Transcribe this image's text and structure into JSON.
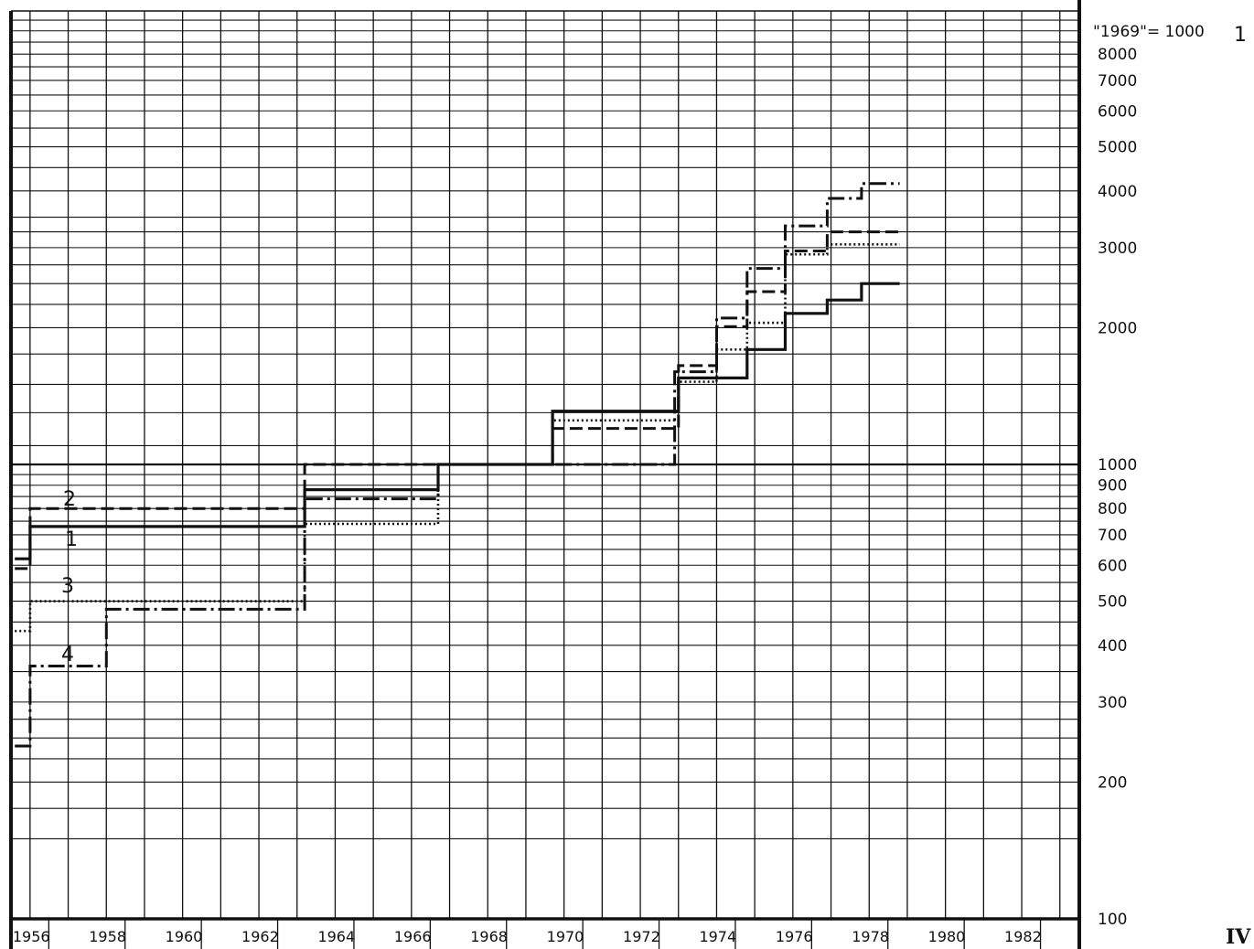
{
  "chart_data": {
    "type": "line",
    "title": "",
    "xlabel": "",
    "ylabel": "",
    "scale_note": "\"1969\"= 1000",
    "figure_number": "1",
    "panel_label": "IV",
    "y_scale": "log",
    "ylim": [
      100,
      10000
    ],
    "xlim": [
      1955.5,
      1983.5
    ],
    "x_tick_labels": [
      "1956",
      "1958",
      "1960",
      "1962",
      "1964",
      "1966",
      "1968",
      "1970",
      "1972",
      "1974",
      "1976",
      "1978",
      "1980",
      "1982"
    ],
    "y_tick_labels": [
      {
        "value": 8000,
        "label": "8000"
      },
      {
        "value": 7000,
        "label": "7000"
      },
      {
        "value": 6000,
        "label": "6000"
      },
      {
        "value": 5000,
        "label": "5000"
      },
      {
        "value": 4000,
        "label": "4000"
      },
      {
        "value": 3000,
        "label": "3000"
      },
      {
        "value": 2000,
        "label": "2000"
      },
      {
        "value": 1000,
        "label": "1000"
      },
      {
        "value": 900,
        "label": "900"
      },
      {
        "value": 800,
        "label": "800"
      },
      {
        "value": 700,
        "label": "700"
      },
      {
        "value": 600,
        "label": "600"
      },
      {
        "value": 500,
        "label": "500"
      },
      {
        "value": 400,
        "label": "400"
      },
      {
        "value": 300,
        "label": "300"
      },
      {
        "value": 200,
        "label": "200"
      },
      {
        "value": 100,
        "label": "100"
      }
    ],
    "grid": true,
    "series": [
      {
        "label": "1",
        "style": "solid",
        "steps": [
          [
            1955.6,
            620
          ],
          [
            1956.0,
            730
          ],
          [
            1963.2,
            880
          ],
          [
            1966.7,
            1000
          ],
          [
            1969.7,
            1310
          ],
          [
            1973.0,
            1550
          ],
          [
            1974.8,
            1790
          ],
          [
            1975.8,
            2150
          ],
          [
            1976.9,
            2300
          ],
          [
            1977.8,
            2500
          ],
          [
            1978.8,
            null
          ]
        ]
      },
      {
        "label": "2",
        "style": "dashed",
        "steps": [
          [
            1955.6,
            590
          ],
          [
            1956.0,
            800
          ],
          [
            1963.2,
            1000
          ],
          [
            1966.7,
            1000
          ],
          [
            1969.7,
            1200
          ],
          [
            1973.0,
            1650
          ],
          [
            1974.0,
            2010
          ],
          [
            1974.8,
            2400
          ],
          [
            1975.8,
            2950
          ],
          [
            1976.9,
            3250
          ],
          [
            1978.8,
            null
          ]
        ]
      },
      {
        "label": "3",
        "style": "dotted",
        "steps": [
          [
            1955.6,
            430
          ],
          [
            1956.0,
            500
          ],
          [
            1963.2,
            740
          ],
          [
            1966.7,
            1000
          ],
          [
            1969.7,
            1250
          ],
          [
            1973.0,
            1520
          ],
          [
            1974.0,
            1790
          ],
          [
            1974.8,
            2050
          ],
          [
            1975.8,
            2900
          ],
          [
            1976.9,
            3050
          ],
          [
            1978.8,
            null
          ]
        ]
      },
      {
        "label": "4",
        "style": "dash-dot",
        "steps": [
          [
            1955.6,
            240
          ],
          [
            1956.0,
            360
          ],
          [
            1958.0,
            480
          ],
          [
            1963.2,
            840
          ],
          [
            1966.7,
            1000
          ],
          [
            1972.9,
            1600
          ],
          [
            1974.0,
            2100
          ],
          [
            1974.8,
            2700
          ],
          [
            1975.8,
            3350
          ],
          [
            1976.9,
            3850
          ],
          [
            1977.8,
            4150
          ],
          [
            1978.8,
            null
          ]
        ]
      }
    ],
    "series_labels": [
      "2",
      "1",
      "3",
      "4"
    ]
  }
}
